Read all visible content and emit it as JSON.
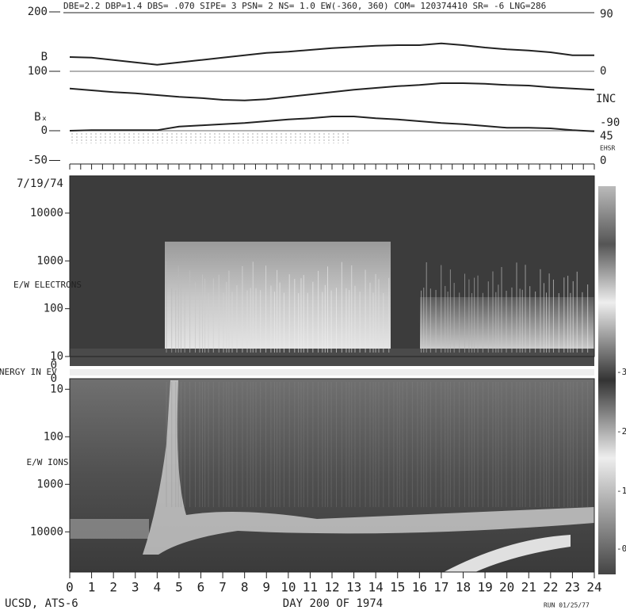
{
  "chart_data": [
    {
      "type": "line",
      "title": "DBE=2.2 DBP=1.4 DBS= .070 SIPE= 3 PSN= 2 NS= 1.0 EW(-360, 360) COM= 120374410 SR= -6 LNG=286",
      "x": [
        0,
        1,
        2,
        3,
        4,
        5,
        6,
        7,
        8,
        9,
        10,
        11,
        12,
        13,
        14,
        15,
        16,
        17,
        18,
        19,
        20,
        21,
        22,
        23,
        24
      ],
      "xlim": [
        0,
        24
      ],
      "ylim": [
        -50,
        200
      ],
      "yticks": [
        200,
        100,
        0,
        -50
      ],
      "right_labels": [
        "90",
        "0",
        "-90",
        "45",
        "EHSR",
        "0"
      ],
      "series": [
        {
          "name": "B",
          "color": "#222",
          "values": [
            124,
            123,
            119,
            115,
            111,
            115,
            119,
            123,
            127,
            131,
            133,
            136,
            139,
            141,
            143,
            144,
            144,
            147,
            144,
            140,
            137,
            135,
            132,
            127,
            127
          ]
        },
        {
          "name": "INC",
          "color": "#222",
          "values": [
            71,
            68,
            65,
            63,
            60,
            57,
            55,
            52,
            51,
            53,
            57,
            61,
            65,
            69,
            72,
            75,
            77,
            80,
            80,
            79,
            77,
            76,
            73,
            71,
            69
          ]
        },
        {
          "name": "Bₓ",
          "color": "#222",
          "values": [
            0,
            1,
            1,
            1,
            1,
            7,
            9,
            11,
            13,
            16,
            19,
            21,
            24,
            24,
            21,
            19,
            16,
            13,
            11,
            8,
            5,
            5,
            4,
            1,
            -1
          ]
        }
      ]
    },
    {
      "type": "spectrogram",
      "date": "7/19/74",
      "ylabel": "E/W ELECTRONS",
      "yscale": "log",
      "ylim": [
        10,
        60000
      ],
      "yticks": [
        10000,
        1000,
        100,
        10
      ],
      "zero_label": "0"
    },
    {
      "type": "spectrogram",
      "ylabel": "E/W IONS",
      "energy_label": "ENERGY IN EV",
      "yscale": "log",
      "ylim": [
        70000,
        6
      ],
      "yticks": [
        10,
        100,
        1000,
        10000
      ],
      "zero_label": "0",
      "xlim": [
        0,
        24
      ],
      "xticks": [
        0,
        1,
        2,
        3,
        4,
        5,
        6,
        7,
        8,
        9,
        10,
        11,
        12,
        13,
        14,
        15,
        16,
        17,
        18,
        19,
        20,
        21,
        22,
        23,
        24
      ],
      "xlabel": "DAY 200 OF 1974",
      "colorbar_labels": [
        "-3",
        "-2",
        "-1",
        "-0"
      ]
    }
  ],
  "footer": {
    "left": "UCSD, ATS-6",
    "right": "RUN 01/25/77"
  }
}
